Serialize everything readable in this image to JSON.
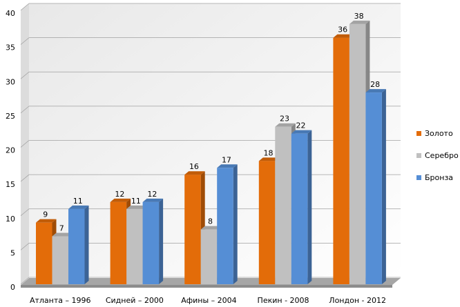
{
  "chart_data": {
    "type": "bar3d",
    "categories": [
      "Атланта – 1996",
      "Сидней – 2000",
      "Афины – 2004",
      "Пекин -  2008",
      "Лондон - 2012"
    ],
    "series": [
      {
        "name": "Золото",
        "color": "#e36c09",
        "values": [
          9,
          12,
          16,
          18,
          36
        ]
      },
      {
        "name": "Серебро",
        "color": "#c0c0c0",
        "values": [
          7,
          11,
          8,
          23,
          38
        ]
      },
      {
        "name": "Бронза",
        "color": "#558ed5",
        "values": [
          11,
          12,
          17,
          22,
          28
        ]
      }
    ],
    "ylim": [
      0,
      40
    ],
    "yticks": [
      0,
      5,
      10,
      15,
      20,
      25,
      30,
      35,
      40
    ],
    "grid": true,
    "legend": "right"
  }
}
